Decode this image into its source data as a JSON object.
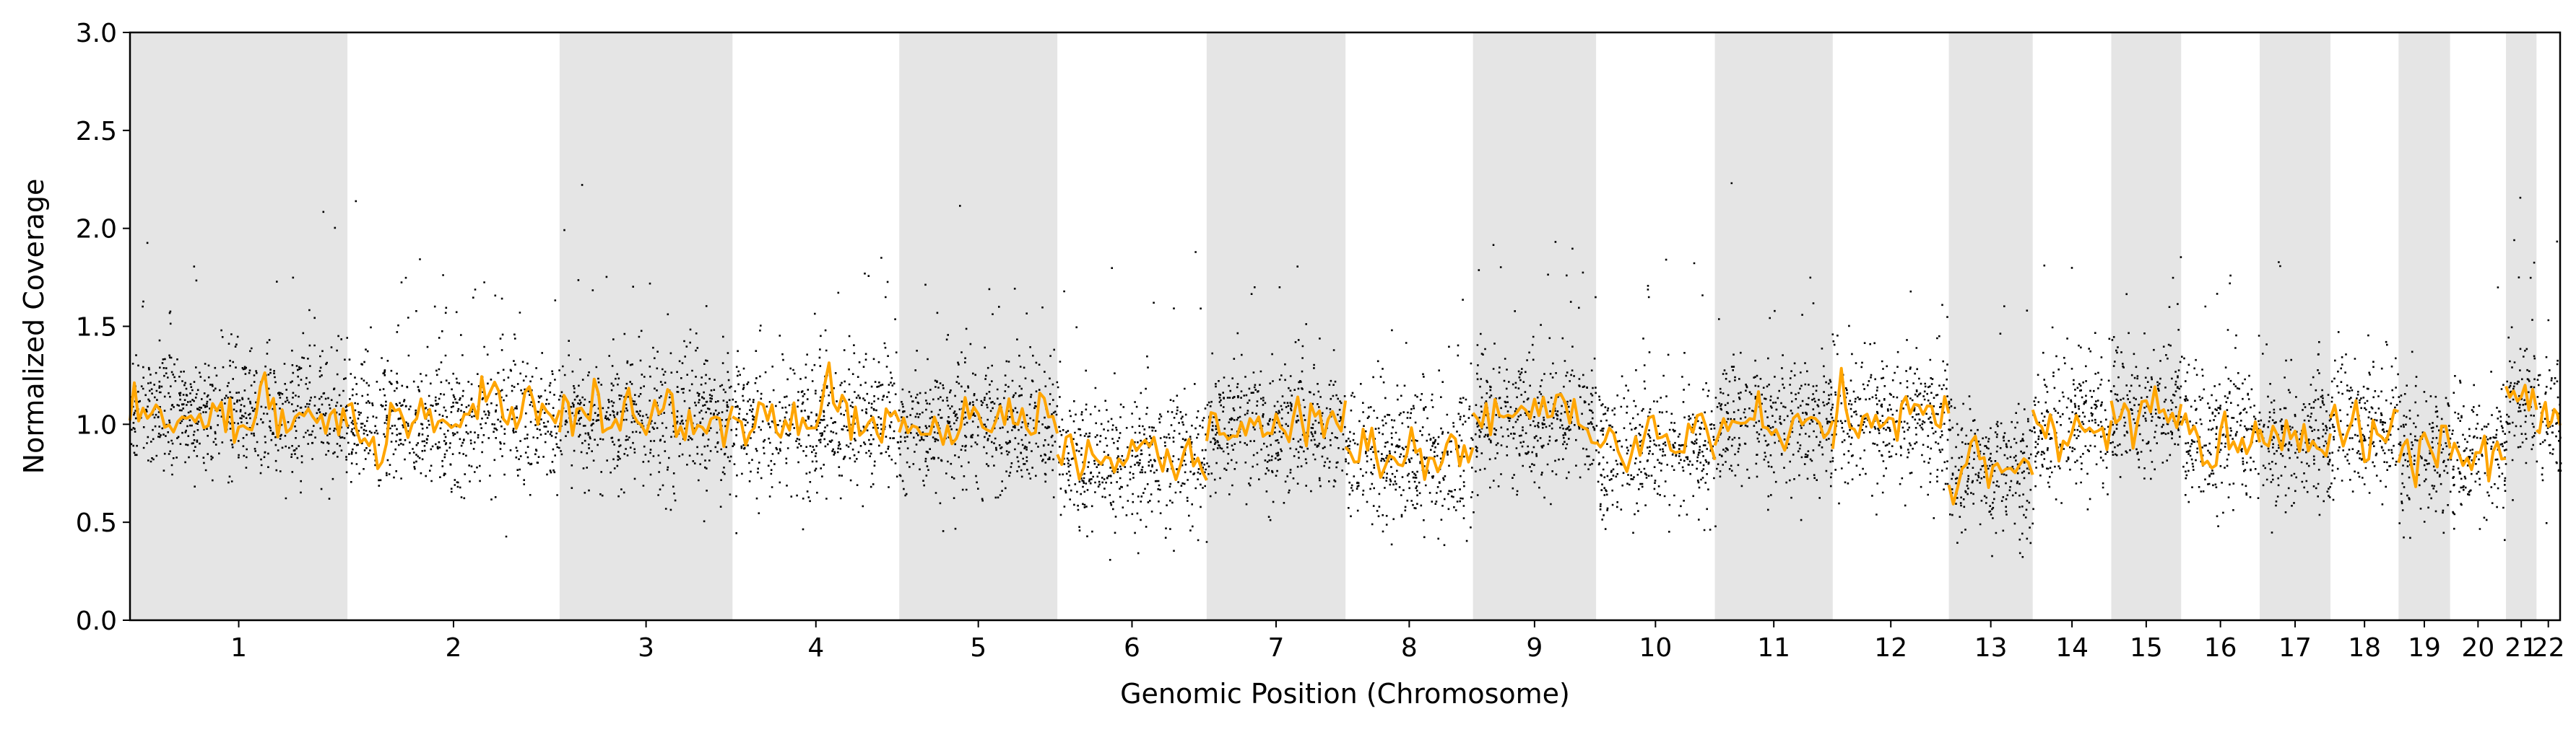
{
  "chart_data": {
    "type": "scatter",
    "title": "",
    "xlabel": "Genomic Position (Chromosome)",
    "ylabel": "Normalized Coverage",
    "ylim": [
      0.0,
      3.0
    ],
    "yticks": [
      0.0,
      0.5,
      1.0,
      1.5,
      2.0,
      2.5,
      3.0
    ],
    "ytick_labels": [
      "0.0",
      "0.5",
      "1.0",
      "1.5",
      "2.0",
      "2.5",
      "3.0"
    ],
    "grid": false,
    "legend": "none",
    "shading": "alternating gray bands for odd-numbered chromosomes",
    "colors": {
      "points": "#000000",
      "segment_line": "#FFA500",
      "band": "#E5E5E5",
      "axes": "#000000"
    },
    "chromosomes": [
      {
        "label": "1",
        "length": 249,
        "baseline": 1.07,
        "shaded": true
      },
      {
        "label": "2",
        "length": 243,
        "baseline": 1.02,
        "shaded": false
      },
      {
        "label": "3",
        "length": 198,
        "baseline": 1.03,
        "shaded": true
      },
      {
        "label": "4",
        "length": 191,
        "baseline": 1.02,
        "shaded": false
      },
      {
        "label": "5",
        "length": 181,
        "baseline": 1.0,
        "shaded": true
      },
      {
        "label": "6",
        "length": 171,
        "baseline": 0.82,
        "shaded": false
      },
      {
        "label": "7",
        "length": 159,
        "baseline": 1.0,
        "shaded": true
      },
      {
        "label": "8",
        "length": 146,
        "baseline": 0.85,
        "shaded": false
      },
      {
        "label": "9",
        "length": 141,
        "baseline": 1.05,
        "shaded": true
      },
      {
        "label": "10",
        "length": 136,
        "baseline": 0.88,
        "shaded": false
      },
      {
        "label": "11",
        "length": 135,
        "baseline": 1.02,
        "shaded": true
      },
      {
        "label": "12",
        "length": 133,
        "baseline": 1.02,
        "shaded": false
      },
      {
        "label": "13",
        "length": 96,
        "baseline": 0.78,
        "shaded": true
      },
      {
        "label": "14",
        "length": 90,
        "baseline": 1.0,
        "shaded": false
      },
      {
        "label": "15",
        "length": 80,
        "baseline": 1.05,
        "shaded": true
      },
      {
        "label": "16",
        "length": 90,
        "baseline": 0.95,
        "shaded": false
      },
      {
        "label": "17",
        "length": 81,
        "baseline": 0.92,
        "shaded": true
      },
      {
        "label": "18",
        "length": 78,
        "baseline": 0.98,
        "shaded": false
      },
      {
        "label": "19",
        "length": 59,
        "baseline": 0.85,
        "shaded": true
      },
      {
        "label": "20",
        "length": 64,
        "baseline": 0.85,
        "shaded": false
      },
      {
        "label": "21",
        "length": 35,
        "baseline": 1.12,
        "shaded": true
      },
      {
        "label": "22",
        "length": 27,
        "baseline": 1.05,
        "shaded": false
      }
    ]
  }
}
